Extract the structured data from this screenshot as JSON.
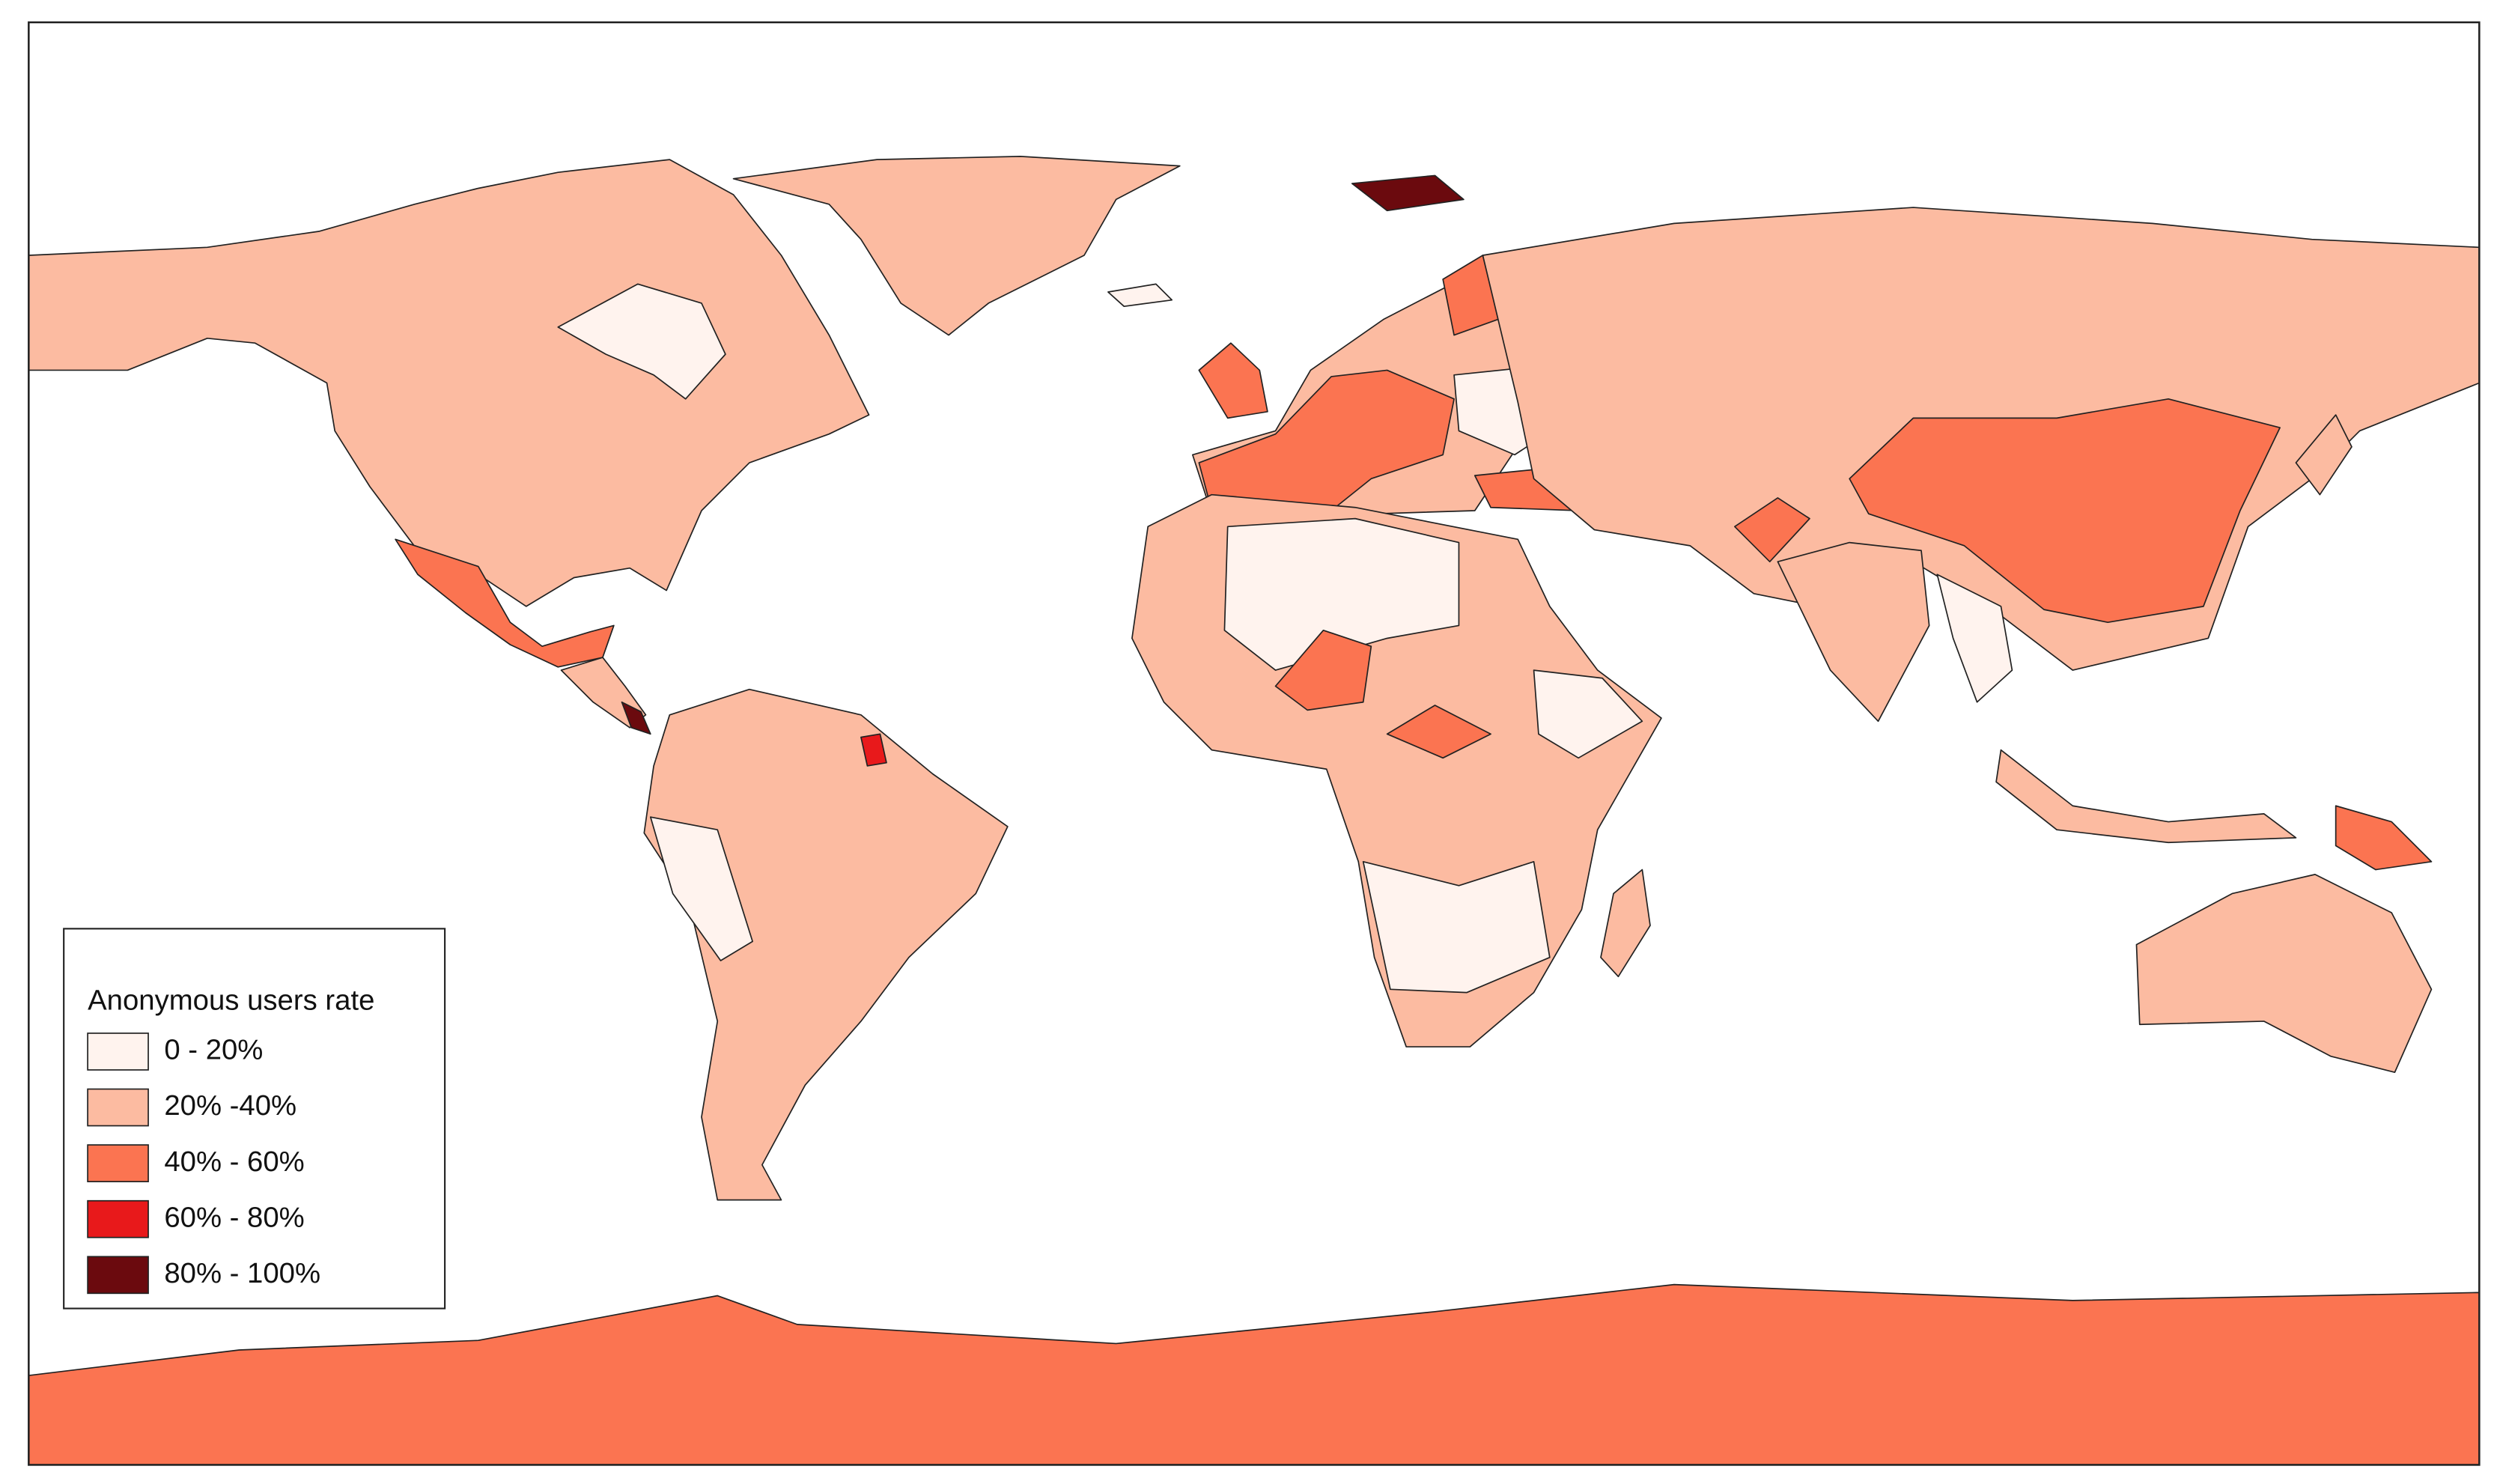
{
  "legend": {
    "title": "Anonymous users rate",
    "items": [
      {
        "label": "0 - 20%",
        "color": "#fff3ee"
      },
      {
        "label": "20% -40%",
        "color": "#fcbba1"
      },
      {
        "label": "40% - 60%",
        "color": "#fb7451"
      },
      {
        "label": "60% - 80%",
        "color": "#e8191b"
      },
      {
        "label": "80% - 100%",
        "color": "#6b0a0e"
      }
    ]
  }
}
